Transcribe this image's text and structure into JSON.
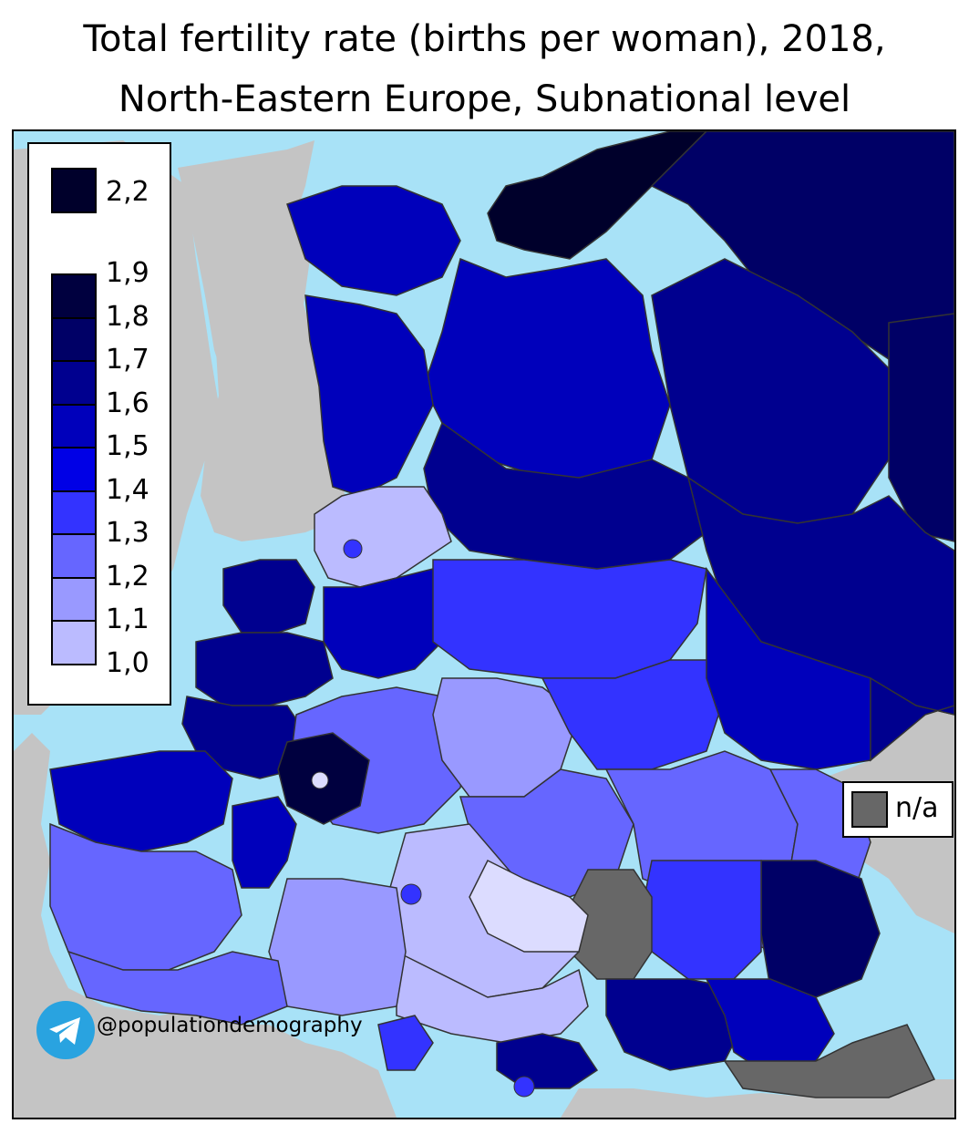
{
  "title": {
    "line1": "Total fertility rate (births per woman), 2018,",
    "line2": "North-Eastern Europe, Subnational level"
  },
  "legend": {
    "top_entry": {
      "label": "2,2",
      "color": "#00002b"
    },
    "scale": [
      {
        "label": "1,9",
        "color": "#00003f"
      },
      {
        "label": "1,8",
        "color": "#000066"
      },
      {
        "label": "1,7",
        "color": "#00008f"
      },
      {
        "label": "1,6",
        "color": "#0000bb"
      },
      {
        "label": "1,5",
        "color": "#0000e6"
      },
      {
        "label": "1,4",
        "color": "#3333ff"
      },
      {
        "label": "1,3",
        "color": "#6666ff"
      },
      {
        "label": "1,2",
        "color": "#9999ff"
      },
      {
        "label": "1,1",
        "color": "#bbbbff"
      },
      {
        "label": "1,0",
        "color": "#dcdcff"
      }
    ]
  },
  "na_legend": {
    "label": "n/a",
    "color": "#676767"
  },
  "credit": {
    "icon": "telegram-icon",
    "text": "@populationdemography"
  },
  "colors": {
    "sea": "#a8e2f7",
    "outside_land": "#c4c4c4",
    "border": "#333333"
  }
}
